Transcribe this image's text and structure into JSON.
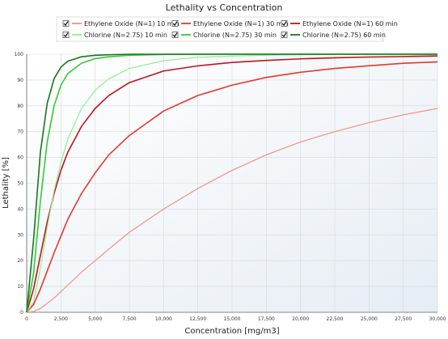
{
  "chart_data": {
    "type": "line",
    "title": "Lethality vs Concentration",
    "xlabel": "Concentration [mg/m3]",
    "ylabel": "Lethality [%]",
    "xlim": [
      0,
      30000
    ],
    "ylim": [
      0,
      100
    ],
    "x_ticks": [
      "0",
      "2,500",
      "5,000",
      "7,500",
      "10,000",
      "12,500",
      "15,000",
      "17,500",
      "20,000",
      "22,500",
      "25,000",
      "27,500",
      "30,000"
    ],
    "y_ticks": [
      "0",
      "10",
      "20",
      "30",
      "40",
      "50",
      "60",
      "70",
      "80",
      "90",
      "100"
    ],
    "grid": true,
    "legend_position": "top",
    "x": [
      0,
      500,
      1000,
      1500,
      2000,
      2500,
      3000,
      4000,
      5000,
      6000,
      7500,
      10000,
      12500,
      15000,
      17500,
      20000,
      22500,
      25000,
      27500,
      30000
    ],
    "series": [
      {
        "name": "Ethylene Oxide (N=1) 10 min",
        "color": "#f4907f",
        "values": [
          0,
          0.3,
          1.5,
          3.5,
          5.5,
          8,
          10.5,
          15.5,
          20,
          24.5,
          31,
          40,
          48,
          55,
          61,
          66,
          70,
          73.5,
          76.5,
          79
        ]
      },
      {
        "name": "Ethylene Oxide (N=1) 30 min",
        "color": "#e8372c",
        "values": [
          0,
          3,
          9,
          16,
          23,
          29.5,
          36,
          46,
          54,
          61,
          68.5,
          78,
          84,
          88,
          91,
          93,
          94.5,
          95.5,
          96.5,
          97
        ]
      },
      {
        "name": "Ethylene Oxide (N=1) 60 min",
        "color": "#c0141b",
        "values": [
          0,
          9,
          22,
          35,
          46,
          55,
          62,
          72,
          79,
          84,
          89,
          93.5,
          95.5,
          96.8,
          97.6,
          98.2,
          98.6,
          98.9,
          99.1,
          99.3
        ]
      },
      {
        "name": "Chlorine (N=2.75) 10 min",
        "color": "#90ee90",
        "values": [
          0,
          4,
          17,
          33,
          47,
          58,
          67,
          79,
          86,
          90.5,
          94.5,
          97.5,
          98.8,
          99.3,
          99.6,
          99.8,
          99.9,
          99.9,
          100,
          100
        ]
      },
      {
        "name": "Chlorine (N=2.75) 30 min",
        "color": "#33cc33",
        "values": [
          0,
          15,
          43,
          66,
          80,
          88,
          92.5,
          96.5,
          98.3,
          99,
          99.6,
          99.9,
          100,
          100,
          100,
          100,
          100,
          100,
          100,
          100
        ]
      },
      {
        "name": "Chlorine (N=2.75) 60 min",
        "color": "#167a1c",
        "values": [
          0,
          28,
          62,
          81,
          90.5,
          95,
          97.3,
          99,
          99.6,
          99.8,
          100,
          100,
          100,
          100,
          100,
          100,
          100,
          100,
          100,
          100
        ]
      }
    ]
  }
}
